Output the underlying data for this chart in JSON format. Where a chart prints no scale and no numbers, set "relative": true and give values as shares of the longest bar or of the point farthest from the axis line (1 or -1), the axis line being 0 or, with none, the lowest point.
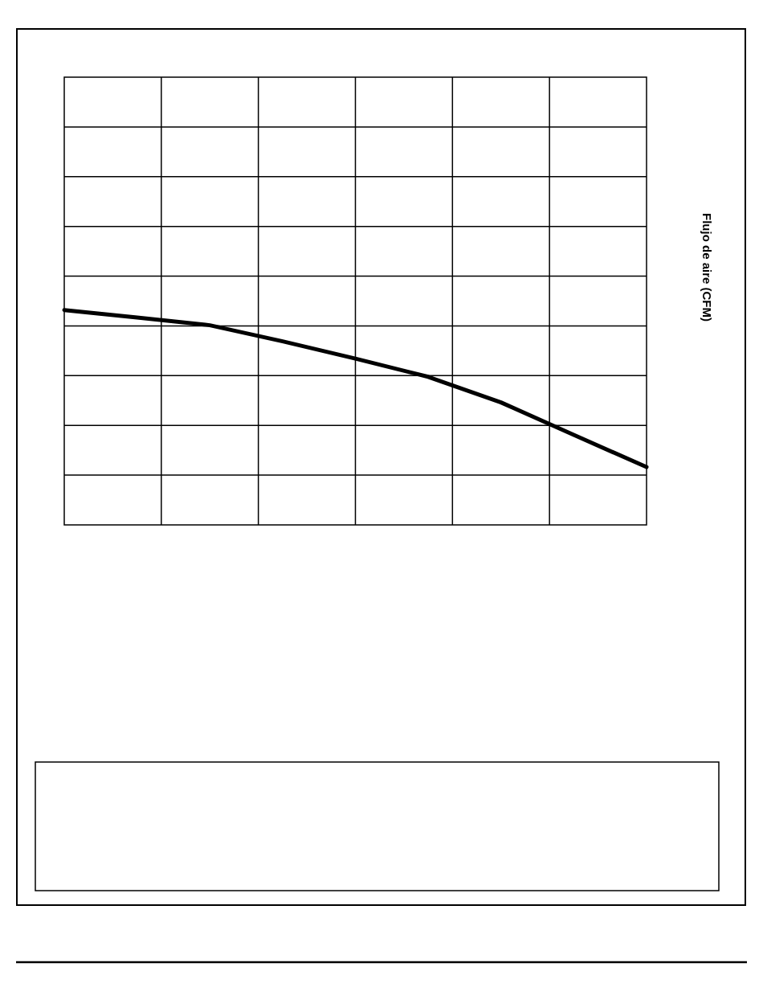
{
  "chart_data": {
    "type": "line",
    "relative": true,
    "ylabel": "Flujo de aire (CFM)",
    "categories": [
      null,
      null,
      null,
      null,
      null,
      null,
      null,
      null,
      null
    ],
    "series": [
      {
        "color": "#000000",
        "values": [
          1,
          0.965,
          0.929,
          0.854,
          0.774,
          0.689,
          0.57,
          0.419,
          0.269
        ]
      }
    ],
    "grid": true,
    "marker": "none",
    "line_style": "solid"
  }
}
